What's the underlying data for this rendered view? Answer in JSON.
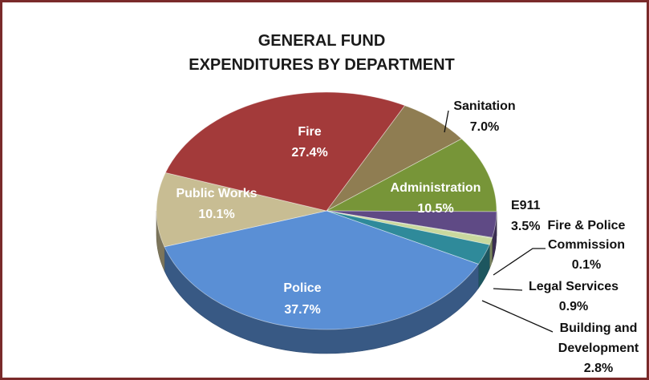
{
  "chart_data": {
    "type": "pie",
    "title": [
      "GENERAL FUND",
      "EXPENDITURES BY DEPARTMENT"
    ],
    "unit": "%",
    "slices": [
      {
        "label": [
          "Sanitation"
        ],
        "value": 7.0,
        "value_label": "7.0%",
        "color": "#8f7d52"
      },
      {
        "label": [
          "Administration"
        ],
        "value": 10.5,
        "value_label": "10.5%",
        "color": "#779538"
      },
      {
        "label": [
          "E911"
        ],
        "value": 3.5,
        "value_label": "3.5%",
        "color": "#5f4a85"
      },
      {
        "label": [
          "Fire & Police",
          "Commission"
        ],
        "value": 0.1,
        "value_label": "0.1%",
        "color": "#6b8c3a"
      },
      {
        "label": [
          "Legal Services"
        ],
        "value": 0.9,
        "value_label": "0.9%",
        "color": "#c9d89e"
      },
      {
        "label": [
          "Building and",
          "Development"
        ],
        "value": 2.8,
        "value_label": "2.8%",
        "color": "#2f8a9a"
      },
      {
        "label": [
          "Police"
        ],
        "value": 37.7,
        "value_label": "37.7%",
        "color": "#5a8fd5"
      },
      {
        "label": [
          "Public Works"
        ],
        "value": 10.1,
        "value_label": "10.1%",
        "color": "#c8bd93"
      },
      {
        "label": [
          "Fire"
        ],
        "value": 27.4,
        "value_label": "27.4%",
        "color": "#a33a3a"
      }
    ]
  }
}
